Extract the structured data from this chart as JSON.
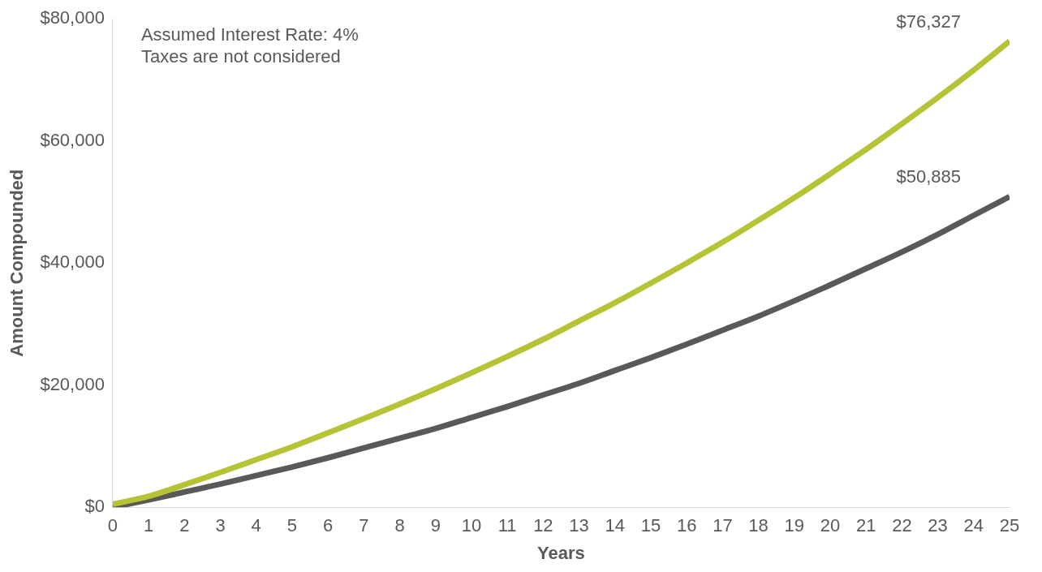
{
  "chart_data": {
    "type": "line",
    "xlabel": "Years",
    "ylabel": "Amount Compounded",
    "x": [
      0,
      1,
      2,
      3,
      4,
      5,
      6,
      7,
      8,
      9,
      10,
      11,
      12,
      13,
      14,
      15,
      16,
      17,
      18,
      19,
      20,
      21,
      22,
      23,
      24,
      25
    ],
    "series": [
      {
        "color": "#b5c334",
        "values": [
          500,
          1800,
          3700,
          5700,
          7800,
          9900,
          12200,
          14500,
          16900,
          19400,
          22000,
          24700,
          27500,
          30500,
          33500,
          36700,
          40000,
          43400,
          47000,
          50700,
          54600,
          58600,
          62800,
          67100,
          71600,
          76327
        ]
      },
      {
        "color": "#595959",
        "values": [
          0,
          1200,
          2500,
          3800,
          5200,
          6600,
          8100,
          9700,
          11300,
          12900,
          14700,
          16500,
          18400,
          20300,
          22400,
          24500,
          26700,
          29000,
          31300,
          33800,
          36400,
          39100,
          41800,
          44700,
          47800,
          50885
        ]
      }
    ],
    "xlim": [
      0,
      25
    ],
    "xticks": [
      0,
      1,
      2,
      3,
      4,
      5,
      6,
      7,
      8,
      9,
      10,
      11,
      12,
      13,
      14,
      15,
      16,
      17,
      18,
      19,
      20,
      21,
      22,
      23,
      24,
      25
    ],
    "ylim": [
      0,
      80000
    ],
    "yticks": [
      {
        "value": 0,
        "label": "$0"
      },
      {
        "value": 20000,
        "label": "$20,000"
      },
      {
        "value": 40000,
        "label": "$40,000"
      },
      {
        "value": 60000,
        "label": "$60,000"
      },
      {
        "value": 80000,
        "label": "$80,000"
      }
    ],
    "grid": false,
    "legend": false,
    "marker": "none",
    "line_style": "solid",
    "annotations": [
      "Assumed Interest Rate: 4%",
      "Taxes are not considered",
      {
        "text": "$76,327",
        "x": 25,
        "y": 76327
      },
      {
        "text": "$50,885",
        "x": 25,
        "y": 50885
      }
    ]
  }
}
